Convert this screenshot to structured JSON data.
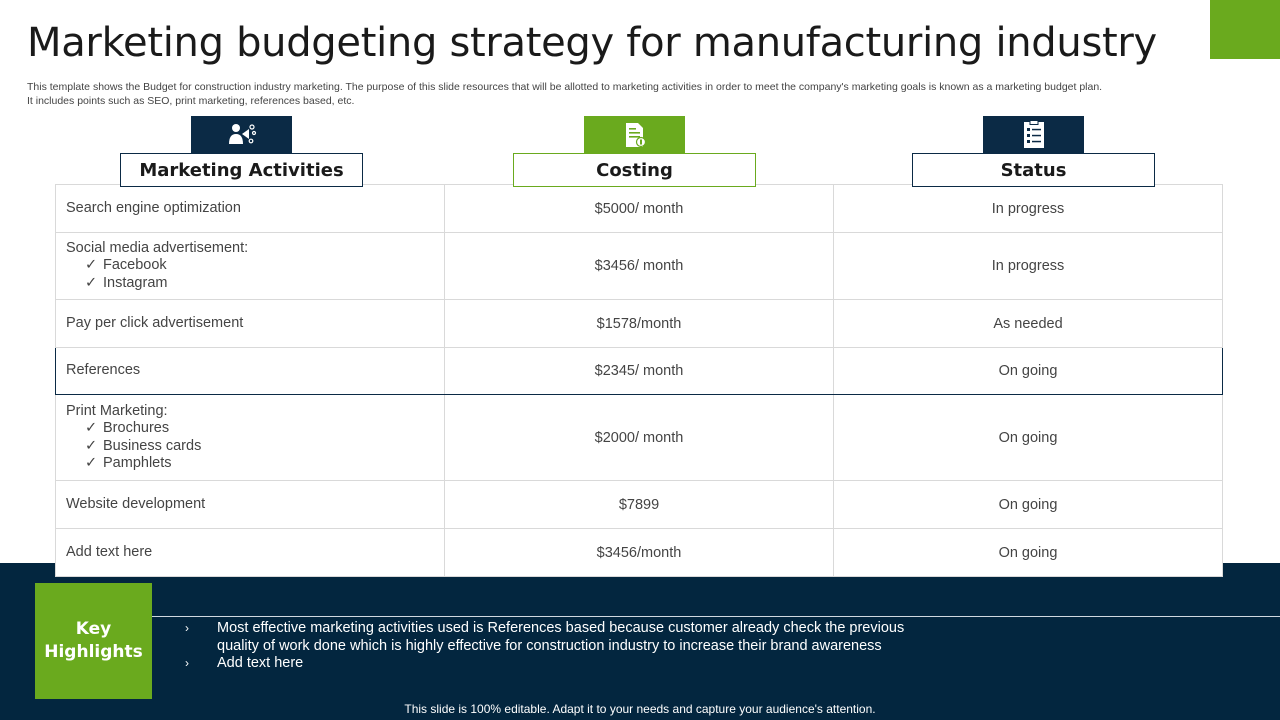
{
  "title": "Marketing budgeting strategy for manufacturing industry",
  "subtitle_line1": "This template shows the Budget for construction industry marketing. The purpose of this slide resources that will be allotted to marketing activities in order to meet the company's marketing goals is known as a marketing budget plan.",
  "subtitle_line2": "It includes points such as SEO, print marketing, references  based, etc.",
  "columns": {
    "activities": {
      "label": "Marketing Activities",
      "icon": "marketing-megaphone-icon"
    },
    "costing": {
      "label": "Costing",
      "icon": "invoice-document-icon"
    },
    "status": {
      "label": "Status",
      "icon": "checklist-icon"
    }
  },
  "rows": [
    {
      "activity": "Search engine optimization",
      "subitems": [],
      "cost": "$5000/ month",
      "status": "In progress"
    },
    {
      "activity": "Social media advertisement:",
      "subitems": [
        "Facebook",
        "Instagram"
      ],
      "cost": "$3456/ month",
      "status": "In progress"
    },
    {
      "activity": "Pay per click advertisement",
      "subitems": [],
      "cost": "$1578/month",
      "status": "As needed"
    },
    {
      "activity": "References",
      "subitems": [],
      "cost": "$2345/ month",
      "status": "On going"
    },
    {
      "activity": "Print Marketing:",
      "subitems": [
        "Brochures",
        "Business cards",
        "Pamphlets"
      ],
      "cost": "$2000/ month",
      "status": "On going"
    },
    {
      "activity": "Website development",
      "subitems": [],
      "cost": "$7899",
      "status": "On going"
    },
    {
      "activity": "Add text here",
      "subitems": [],
      "cost": "$3456/month",
      "status": "On going"
    }
  ],
  "check_mark": "✓",
  "key_highlights": {
    "label_line1": "Key",
    "label_line2": "Highlights",
    "bullet_glyph": "›",
    "items": [
      "Most effective marketing activities used is References based because customer already check the previous quality of work done which is highly effective for construction industry to increase their brand awareness",
      "Add text here"
    ]
  },
  "footer": "This slide is 100% editable. Adapt it to your needs and capture your audience's attention.",
  "colors": {
    "navy": "#0b2a45",
    "green": "#6aaa1e",
    "band": "#03263f"
  }
}
